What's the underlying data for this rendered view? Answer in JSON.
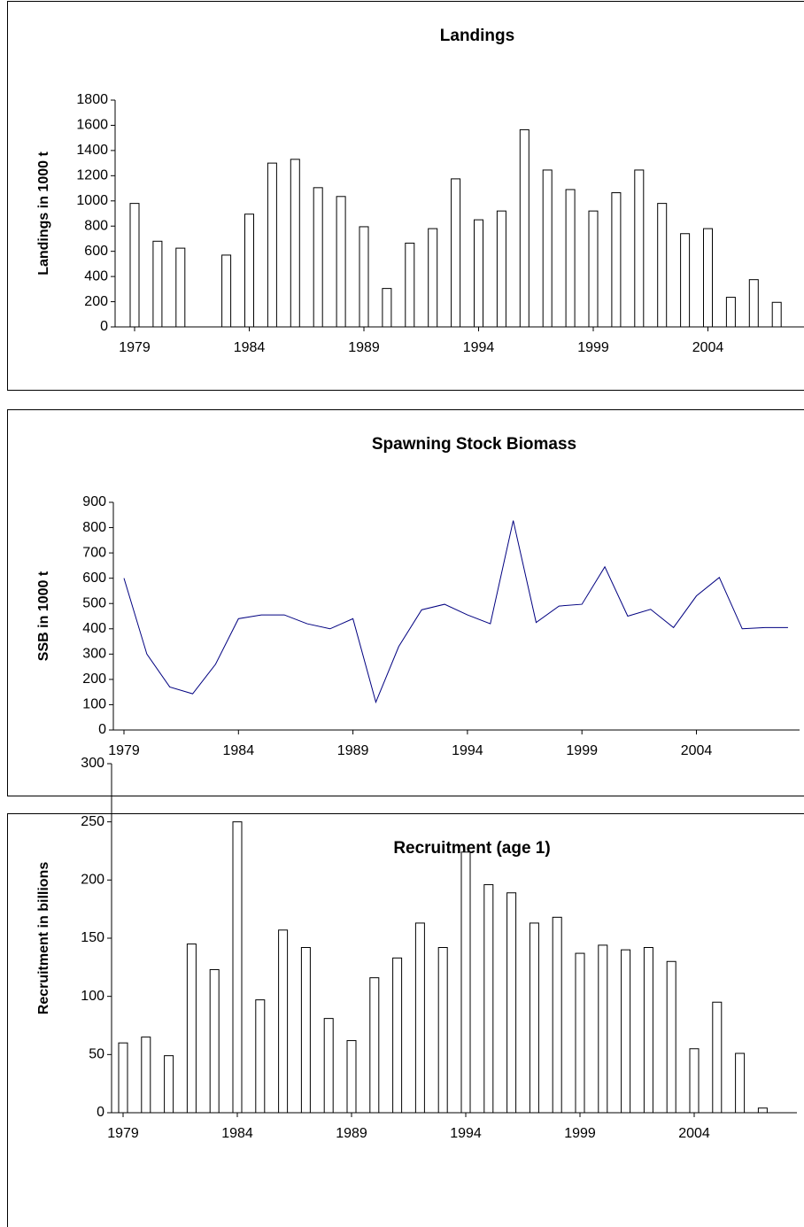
{
  "chart_data": [
    {
      "type": "bar",
      "title": "Landings",
      "y_label": "Landings in 1000 t",
      "categories": [
        "1979",
        null,
        null,
        null,
        null,
        "1984",
        null,
        null,
        null,
        null,
        "1989",
        null,
        null,
        null,
        null,
        "1994",
        null,
        null,
        null,
        null,
        "1999",
        null,
        null,
        null,
        null,
        "2004",
        null,
        null,
        null
      ],
      "values": [
        980,
        680,
        625,
        null,
        570,
        895,
        1300,
        1330,
        1105,
        1035,
        795,
        305,
        665,
        780,
        1175,
        850,
        920,
        1565,
        1245,
        1090,
        920,
        1065,
        1245,
        980,
        740,
        780,
        235,
        375,
        195
      ],
      "color": "#ffffff",
      "ylim": [
        0,
        1800
      ],
      "yticks": [
        0,
        200,
        400,
        600,
        800,
        1000,
        1200,
        1400,
        1600,
        1800
      ]
    },
    {
      "type": "line",
      "title": "Spawning Stock Biomass",
      "y_label": "SSB in 1000 t",
      "categories": [
        "1979",
        null,
        null,
        null,
        null,
        "1984",
        null,
        null,
        null,
        null,
        "1989",
        null,
        null,
        null,
        null,
        "1994",
        null,
        null,
        null,
        null,
        "1999",
        null,
        null,
        null,
        null,
        "2004",
        null,
        null,
        null,
        null
      ],
      "values": [
        600,
        300,
        170,
        143,
        260,
        440,
        455,
        455,
        420,
        400,
        440,
        110,
        330,
        475,
        497,
        455,
        420,
        828,
        425,
        490,
        497,
        645,
        450,
        477,
        405,
        530,
        603,
        400,
        405,
        405
      ],
      "color": "#000080",
      "ylim": [
        0,
        900
      ],
      "yticks": [
        0,
        100,
        200,
        300,
        400,
        500,
        600,
        700,
        800,
        900
      ]
    },
    {
      "type": "bar",
      "title": "Recruitment (age 1)",
      "y_label": "Recruitment in billions",
      "categories": [
        "1979",
        null,
        null,
        null,
        null,
        "1984",
        null,
        null,
        null,
        null,
        "1989",
        null,
        null,
        null,
        null,
        "1994",
        null,
        null,
        null,
        null,
        "1999",
        null,
        null,
        null,
        null,
        "2004",
        null,
        null,
        null
      ],
      "values": [
        60,
        65,
        49,
        145,
        123,
        250,
        97,
        157,
        142,
        81,
        62,
        116,
        133,
        163,
        142,
        224,
        196,
        189,
        163,
        168,
        137,
        144,
        140,
        142,
        130,
        55,
        95,
        51,
        4
      ],
      "color": "#ffffff",
      "ylim": [
        0,
        300
      ],
      "yticks": [
        0,
        50,
        100,
        150,
        200,
        250,
        300
      ]
    }
  ]
}
